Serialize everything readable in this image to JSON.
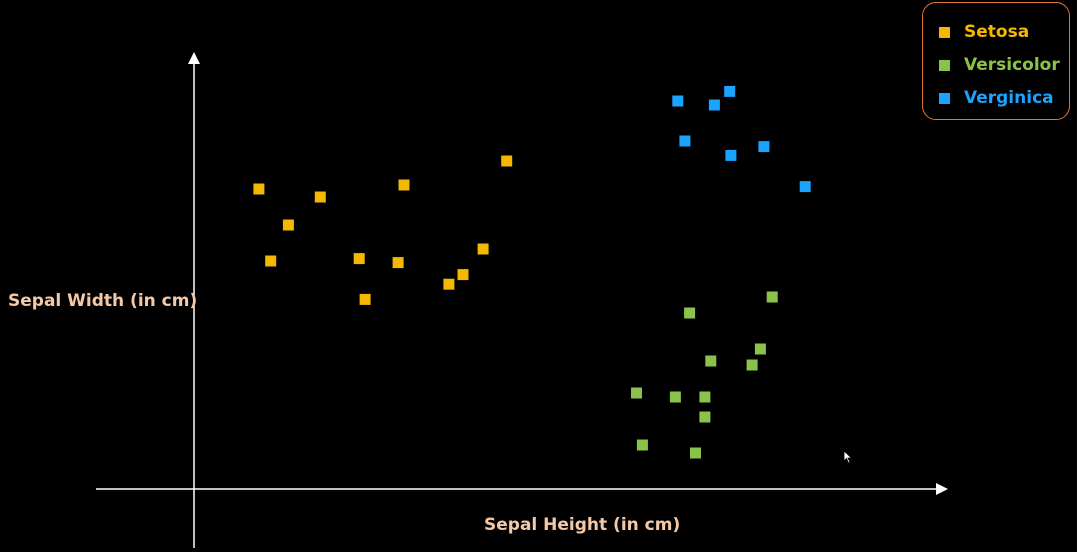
{
  "chart_data": {
    "type": "scatter",
    "xlabel": "Sepal Height (in cm)",
    "ylabel": "Sepal Width (in cm)",
    "grid": false,
    "legend_position": "top-right",
    "series": [
      {
        "name": "Setosa",
        "color": "#f5b800",
        "points": [
          [
            0.55,
            3.75
          ],
          [
            0.8,
            3.3
          ],
          [
            1.07,
            3.65
          ],
          [
            0.65,
            2.85
          ],
          [
            1.4,
            2.88
          ],
          [
            1.45,
            2.37
          ],
          [
            1.78,
            3.8
          ],
          [
            1.73,
            2.83
          ],
          [
            2.16,
            2.56
          ],
          [
            2.28,
            2.68
          ],
          [
            2.45,
            3.0
          ],
          [
            2.65,
            4.1
          ]
        ]
      },
      {
        "name": "Versicolor",
        "color": "#8bc34a",
        "points": [
          [
            3.75,
            1.2
          ],
          [
            4.2,
            2.2
          ],
          [
            4.08,
            1.15
          ],
          [
            4.38,
            1.6
          ],
          [
            4.33,
            1.15
          ],
          [
            4.33,
            0.9
          ],
          [
            4.8,
            1.75
          ],
          [
            4.73,
            1.55
          ],
          [
            4.25,
            0.45
          ],
          [
            3.8,
            0.55
          ],
          [
            4.9,
            2.4
          ]
        ]
      },
      {
        "name": "Verginica",
        "color": "#1aa3ff",
        "points": [
          [
            4.1,
            4.85
          ],
          [
            4.16,
            4.35
          ],
          [
            4.41,
            4.8
          ],
          [
            4.54,
            4.97
          ],
          [
            4.55,
            4.17
          ],
          [
            4.83,
            4.28
          ],
          [
            5.18,
            3.78
          ]
        ]
      }
    ]
  },
  "legend": {
    "items": [
      {
        "label": "Setosa",
        "color": "#f5b800"
      },
      {
        "label": "Versicolor",
        "color": "#8bc34a"
      },
      {
        "label": "Verginica",
        "color": "#1aa3ff"
      }
    ]
  }
}
